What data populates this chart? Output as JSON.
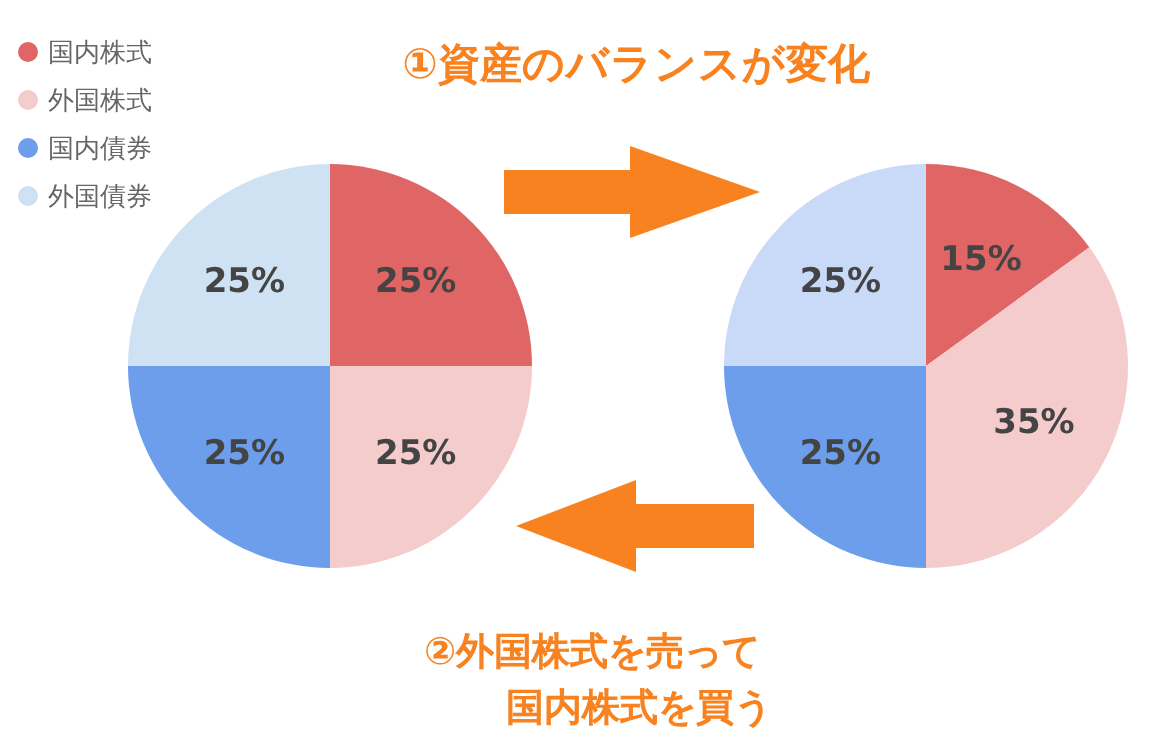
{
  "chart_data": [
    {
      "type": "pie",
      "title": "①資産のバランスが変化",
      "categories": [
        "国内株式",
        "外国株式",
        "国内債券",
        "外国債券"
      ],
      "values": [
        25,
        25,
        25,
        25
      ],
      "value_labels": [
        "25%",
        "25%",
        "25%",
        "25%"
      ],
      "colors": [
        "#e06666",
        "#f4cccc",
        "#6d9eeb",
        "#cfe2f3"
      ],
      "legend": "top left"
    },
    {
      "type": "pie",
      "categories": [
        null,
        null,
        null,
        null
      ],
      "values": [
        15,
        35,
        25,
        25
      ],
      "value_labels": [
        "15%",
        "35%",
        "25%",
        "25%"
      ],
      "colors": [
        "#e06666",
        "#f4cccc",
        "#6d9eeb",
        "#c9daf8"
      ],
      "annotations": [
        "②外国株式を売って",
        "国内株式を買う"
      ]
    }
  ]
}
